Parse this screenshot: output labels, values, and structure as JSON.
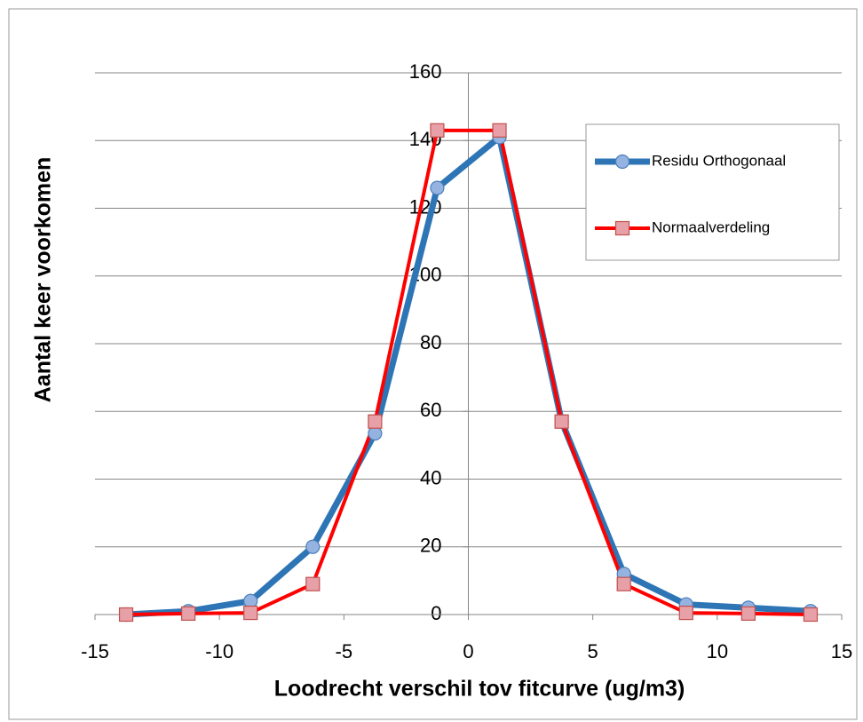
{
  "chart_data": {
    "type": "line",
    "xlabel": "Loodrecht verschil tov fitcurve (ug/m3)",
    "ylabel": "Aantal keer voorkomen",
    "x": [
      -13.75,
      -11.25,
      -8.75,
      -6.25,
      -3.75,
      -1.25,
      1.25,
      3.75,
      6.25,
      8.75,
      11.25,
      13.75
    ],
    "series": [
      {
        "name": "Residu Orthogonaal",
        "color": "#2e75b6",
        "marker": "circle",
        "values": [
          0,
          1,
          4,
          20,
          53.5,
          126,
          141,
          57,
          12,
          3,
          2,
          1
        ]
      },
      {
        "name": "Normaalverdeling",
        "color": "#ff0000",
        "marker": "square",
        "values": [
          0,
          0.3,
          0.5,
          9,
          57,
          143,
          143,
          57,
          9,
          0.5,
          0.3,
          0
        ]
      }
    ],
    "xlim": [
      -15,
      15
    ],
    "xticks": [
      -15,
      -10,
      -5,
      0,
      5,
      10,
      15
    ],
    "ylim": [
      0,
      160
    ],
    "yticks": [
      0,
      20,
      40,
      60,
      80,
      100,
      120,
      140,
      160
    ],
    "grid": true,
    "legend": "upper right"
  }
}
